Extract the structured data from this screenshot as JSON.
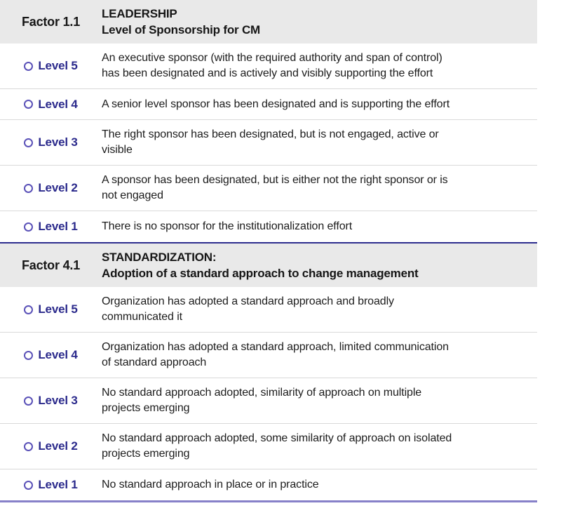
{
  "table": {
    "colors": {
      "header_bg": "#e9e9e9",
      "level_text": "#2b2a8c",
      "radio_ring": "#5b52b8",
      "row_divider": "#d9d9d9",
      "section_divider": "#2d2d8e",
      "bottom_border": "#8781c9"
    },
    "sections": [
      {
        "factor": "Factor 1.1",
        "category": "LEADERSHIP",
        "subtitle": "Level of Sponsorship for CM",
        "levels": [
          {
            "label": "Level 5",
            "description": "An executive sponsor (with the required authority and span of control)\nhas been designated and is actively and visibly supporting the effort"
          },
          {
            "label": "Level 4",
            "description": "A senior level sponsor has been designated and is supporting the effort"
          },
          {
            "label": "Level 3",
            "description": "The right sponsor has been designated, but is not engaged, active or\nvisible"
          },
          {
            "label": "Level 2",
            "description": "A sponsor has been designated, but is either not the right sponsor or is\nnot engaged"
          },
          {
            "label": "Level 1",
            "description": "There is no sponsor for the institutionalization effort"
          }
        ]
      },
      {
        "factor": "Factor 4.1",
        "category": "STANDARDIZATION:",
        "subtitle": "Adoption of a standard approach to change management",
        "levels": [
          {
            "label": "Level 5",
            "description": "Organization has adopted a standard approach and broadly\ncommunicated it"
          },
          {
            "label": "Level 4",
            "description": "Organization has adopted a standard approach, limited communication\nof standard approach"
          },
          {
            "label": "Level 3",
            "description": "No standard approach adopted, similarity of approach on multiple\nprojects emerging"
          },
          {
            "label": "Level 2",
            "description": "No standard approach adopted, some similarity of approach on isolated\nprojects emerging"
          },
          {
            "label": "Level 1",
            "description": "No standard approach in place or in practice"
          }
        ]
      }
    ]
  }
}
